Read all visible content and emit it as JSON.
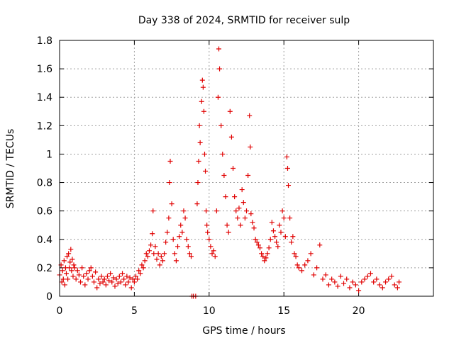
{
  "chart_data": {
    "type": "scatter",
    "title": "Day 338 of 2024, SRMTID for receiver sulp",
    "xlabel": "GPS time / hours",
    "ylabel": "SRMTID / TECUs",
    "xlim": [
      0,
      25
    ],
    "ylim": [
      0,
      1.8
    ],
    "x_ticks": [
      0,
      5,
      10,
      15,
      20
    ],
    "x_tick_labels": [
      "0",
      "5",
      "10",
      "15",
      "20"
    ],
    "y_ticks": [
      0,
      0.2,
      0.4,
      0.6,
      0.8,
      1.0,
      1.2,
      1.4,
      1.6,
      1.8
    ],
    "y_tick_labels": [
      "0",
      "0.2",
      "0.4",
      "0.6",
      "0.8",
      "1",
      "1.2",
      "1.4",
      "1.6",
      "1.8"
    ],
    "grid": true,
    "marker": "plus",
    "series": [
      {
        "name": "SRMTID",
        "color": "#e00000",
        "points": [
          [
            0.0,
            0.15
          ],
          [
            0.1,
            0.22
          ],
          [
            0.15,
            0.1
          ],
          [
            0.2,
            0.18
          ],
          [
            0.25,
            0.12
          ],
          [
            0.3,
            0.25
          ],
          [
            0.35,
            0.08
          ],
          [
            0.4,
            0.2
          ],
          [
            0.45,
            0.16
          ],
          [
            0.5,
            0.28
          ],
          [
            0.55,
            0.12
          ],
          [
            0.6,
            0.3
          ],
          [
            0.65,
            0.2
          ],
          [
            0.7,
            0.24
          ],
          [
            0.75,
            0.33
          ],
          [
            0.8,
            0.18
          ],
          [
            0.85,
            0.26
          ],
          [
            0.9,
            0.14
          ],
          [
            0.95,
            0.22
          ],
          [
            1.0,
            0.2
          ],
          [
            1.1,
            0.12
          ],
          [
            1.2,
            0.18
          ],
          [
            1.3,
            0.15
          ],
          [
            1.4,
            0.1
          ],
          [
            1.5,
            0.2
          ],
          [
            1.6,
            0.14
          ],
          [
            1.7,
            0.08
          ],
          [
            1.8,
            0.16
          ],
          [
            1.9,
            0.12
          ],
          [
            2.0,
            0.18
          ],
          [
            2.1,
            0.2
          ],
          [
            2.2,
            0.14
          ],
          [
            2.3,
            0.1
          ],
          [
            2.4,
            0.17
          ],
          [
            2.5,
            0.06
          ],
          [
            2.6,
            0.12
          ],
          [
            2.7,
            0.09
          ],
          [
            2.8,
            0.14
          ],
          [
            2.9,
            0.1
          ],
          [
            3.0,
            0.12
          ],
          [
            3.1,
            0.08
          ],
          [
            3.2,
            0.14
          ],
          [
            3.3,
            0.11
          ],
          [
            3.4,
            0.16
          ],
          [
            3.5,
            0.1
          ],
          [
            3.6,
            0.13
          ],
          [
            3.7,
            0.07
          ],
          [
            3.8,
            0.12
          ],
          [
            3.9,
            0.09
          ],
          [
            4.0,
            0.14
          ],
          [
            4.1,
            0.1
          ],
          [
            4.2,
            0.16
          ],
          [
            4.3,
            0.12
          ],
          [
            4.4,
            0.08
          ],
          [
            4.5,
            0.14
          ],
          [
            4.6,
            0.1
          ],
          [
            4.7,
            0.13
          ],
          [
            4.8,
            0.06
          ],
          [
            4.9,
            0.12
          ],
          [
            5.0,
            0.1
          ],
          [
            5.1,
            0.14
          ],
          [
            5.2,
            0.12
          ],
          [
            5.3,
            0.18
          ],
          [
            5.4,
            0.16
          ],
          [
            5.5,
            0.22
          ],
          [
            5.6,
            0.2
          ],
          [
            5.7,
            0.25
          ],
          [
            5.8,
            0.3
          ],
          [
            5.9,
            0.28
          ],
          [
            6.0,
            0.32
          ],
          [
            6.1,
            0.36
          ],
          [
            6.2,
            0.44
          ],
          [
            6.25,
            0.6
          ],
          [
            6.3,
            0.3
          ],
          [
            6.4,
            0.35
          ],
          [
            6.5,
            0.26
          ],
          [
            6.6,
            0.3
          ],
          [
            6.7,
            0.22
          ],
          [
            6.8,
            0.28
          ],
          [
            6.9,
            0.25
          ],
          [
            7.0,
            0.3
          ],
          [
            7.1,
            0.38
          ],
          [
            7.2,
            0.45
          ],
          [
            7.3,
            0.55
          ],
          [
            7.35,
            0.8
          ],
          [
            7.4,
            0.95
          ],
          [
            7.5,
            0.65
          ],
          [
            7.6,
            0.4
          ],
          [
            7.7,
            0.3
          ],
          [
            7.8,
            0.25
          ],
          [
            7.9,
            0.35
          ],
          [
            8.0,
            0.42
          ],
          [
            8.1,
            0.5
          ],
          [
            8.2,
            0.45
          ],
          [
            8.3,
            0.6
          ],
          [
            8.4,
            0.55
          ],
          [
            8.5,
            0.4
          ],
          [
            8.6,
            0.35
          ],
          [
            8.7,
            0.3
          ],
          [
            8.8,
            0.28
          ],
          [
            8.85,
            0.0
          ],
          [
            8.95,
            0.0
          ],
          [
            9.1,
            0.0
          ],
          [
            9.2,
            0.65
          ],
          [
            9.25,
            0.8
          ],
          [
            9.3,
            0.95
          ],
          [
            9.35,
            1.2
          ],
          [
            9.4,
            1.08
          ],
          [
            9.5,
            1.37
          ],
          [
            9.55,
            1.52
          ],
          [
            9.6,
            1.47
          ],
          [
            9.65,
            1.3
          ],
          [
            9.7,
            1.0
          ],
          [
            9.75,
            0.88
          ],
          [
            9.8,
            0.6
          ],
          [
            9.85,
            0.5
          ],
          [
            9.9,
            0.45
          ],
          [
            10.0,
            0.4
          ],
          [
            10.1,
            0.35
          ],
          [
            10.2,
            0.3
          ],
          [
            10.3,
            0.32
          ],
          [
            10.4,
            0.28
          ],
          [
            10.5,
            0.6
          ],
          [
            10.6,
            1.4
          ],
          [
            10.65,
            1.74
          ],
          [
            10.7,
            1.6
          ],
          [
            10.8,
            1.2
          ],
          [
            10.9,
            1.0
          ],
          [
            11.0,
            0.85
          ],
          [
            11.1,
            0.7
          ],
          [
            11.2,
            0.5
          ],
          [
            11.3,
            0.45
          ],
          [
            11.4,
            1.3
          ],
          [
            11.5,
            1.12
          ],
          [
            11.6,
            0.9
          ],
          [
            11.7,
            0.7
          ],
          [
            11.8,
            0.6
          ],
          [
            11.9,
            0.55
          ],
          [
            12.0,
            0.62
          ],
          [
            12.1,
            0.5
          ],
          [
            12.2,
            0.75
          ],
          [
            12.3,
            0.66
          ],
          [
            12.4,
            0.55
          ],
          [
            12.5,
            0.6
          ],
          [
            12.6,
            0.85
          ],
          [
            12.7,
            1.27
          ],
          [
            12.75,
            1.05
          ],
          [
            12.8,
            0.58
          ],
          [
            12.9,
            0.52
          ],
          [
            13.0,
            0.48
          ],
          [
            13.1,
            0.4
          ],
          [
            13.2,
            0.38
          ],
          [
            13.3,
            0.36
          ],
          [
            13.4,
            0.34
          ],
          [
            13.5,
            0.3
          ],
          [
            13.6,
            0.28
          ],
          [
            13.7,
            0.25
          ],
          [
            13.8,
            0.27
          ],
          [
            13.9,
            0.3
          ],
          [
            14.0,
            0.34
          ],
          [
            14.1,
            0.4
          ],
          [
            14.2,
            0.52
          ],
          [
            14.3,
            0.46
          ],
          [
            14.4,
            0.42
          ],
          [
            14.5,
            0.38
          ],
          [
            14.6,
            0.35
          ],
          [
            14.7,
            0.5
          ],
          [
            14.8,
            0.45
          ],
          [
            14.9,
            0.6
          ],
          [
            15.0,
            0.55
          ],
          [
            15.1,
            0.42
          ],
          [
            15.2,
            0.98
          ],
          [
            15.25,
            0.9
          ],
          [
            15.3,
            0.78
          ],
          [
            15.4,
            0.55
          ],
          [
            15.5,
            0.38
          ],
          [
            15.6,
            0.42
          ],
          [
            15.7,
            0.3
          ],
          [
            15.8,
            0.28
          ],
          [
            15.9,
            0.22
          ],
          [
            16.0,
            0.2
          ],
          [
            16.2,
            0.18
          ],
          [
            16.4,
            0.22
          ],
          [
            16.6,
            0.25
          ],
          [
            16.8,
            0.3
          ],
          [
            17.0,
            0.15
          ],
          [
            17.2,
            0.2
          ],
          [
            17.4,
            0.36
          ],
          [
            17.6,
            0.12
          ],
          [
            17.8,
            0.15
          ],
          [
            18.0,
            0.08
          ],
          [
            18.2,
            0.12
          ],
          [
            18.4,
            0.1
          ],
          [
            18.6,
            0.07
          ],
          [
            18.8,
            0.14
          ],
          [
            19.0,
            0.09
          ],
          [
            19.2,
            0.12
          ],
          [
            19.4,
            0.06
          ],
          [
            19.6,
            0.1
          ],
          [
            19.8,
            0.08
          ],
          [
            20.0,
            0.04
          ],
          [
            20.2,
            0.1
          ],
          [
            20.4,
            0.12
          ],
          [
            20.6,
            0.14
          ],
          [
            20.8,
            0.16
          ],
          [
            21.0,
            0.1
          ],
          [
            21.2,
            0.12
          ],
          [
            21.4,
            0.08
          ],
          [
            21.6,
            0.06
          ],
          [
            21.8,
            0.1
          ],
          [
            22.0,
            0.12
          ],
          [
            22.2,
            0.14
          ],
          [
            22.4,
            0.08
          ],
          [
            22.6,
            0.06
          ],
          [
            22.7,
            0.1
          ]
        ]
      }
    ]
  }
}
